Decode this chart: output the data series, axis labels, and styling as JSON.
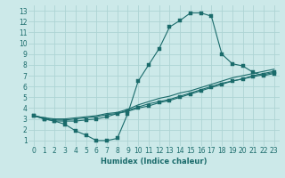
{
  "bg_color": "#cce9e9",
  "grid_color": "#aed4d4",
  "line_color": "#1a6b6b",
  "xlabel": "Humidex (Indice chaleur)",
  "xlim": [
    -0.5,
    23.5
  ],
  "ylim": [
    0.5,
    13.5
  ],
  "xticks": [
    0,
    1,
    2,
    3,
    4,
    5,
    6,
    7,
    8,
    9,
    10,
    11,
    12,
    13,
    14,
    15,
    16,
    17,
    18,
    19,
    20,
    21,
    22,
    23
  ],
  "yticks": [
    1,
    2,
    3,
    4,
    5,
    6,
    7,
    8,
    9,
    10,
    11,
    12,
    13
  ],
  "curve1_x": [
    0,
    1,
    2,
    3,
    4,
    5,
    6,
    7,
    8,
    9,
    10,
    11,
    12,
    13,
    14,
    15,
    16,
    17,
    18,
    19,
    20,
    21,
    22,
    23
  ],
  "curve1_y": [
    3.3,
    3.0,
    2.8,
    2.5,
    1.9,
    1.5,
    1.0,
    1.0,
    1.2,
    3.5,
    6.5,
    8.0,
    9.5,
    11.5,
    12.1,
    12.8,
    12.8,
    12.5,
    9.0,
    8.1,
    7.9,
    7.3,
    7.0,
    7.2
  ],
  "curve2_x": [
    0,
    1,
    2,
    3,
    4,
    5,
    6,
    7,
    8,
    9,
    10,
    11,
    12,
    13,
    14,
    15,
    16,
    17,
    18,
    19,
    20,
    21,
    22,
    23
  ],
  "curve2_y": [
    3.3,
    3.0,
    2.8,
    2.8,
    2.8,
    2.9,
    3.0,
    3.2,
    3.5,
    3.7,
    4.0,
    4.2,
    4.5,
    4.7,
    5.0,
    5.3,
    5.6,
    5.9,
    6.2,
    6.5,
    6.7,
    6.9,
    7.1,
    7.3
  ],
  "curve3_x": [
    0,
    1,
    2,
    3,
    4,
    5,
    6,
    7,
    8,
    9,
    10,
    11,
    12,
    13,
    14,
    15,
    16,
    17,
    18,
    19,
    20,
    21,
    22,
    23
  ],
  "curve3_y": [
    3.3,
    3.1,
    2.9,
    2.9,
    3.0,
    3.1,
    3.2,
    3.4,
    3.5,
    3.8,
    4.1,
    4.4,
    4.6,
    4.8,
    5.1,
    5.4,
    5.7,
    6.0,
    6.3,
    6.5,
    6.7,
    7.0,
    7.2,
    7.4
  ],
  "curve4_x": [
    0,
    1,
    2,
    3,
    4,
    5,
    6,
    7,
    8,
    9,
    10,
    11,
    12,
    13,
    14,
    15,
    16,
    17,
    18,
    19,
    20,
    21,
    22,
    23
  ],
  "curve4_y": [
    3.3,
    3.1,
    3.0,
    3.0,
    3.1,
    3.2,
    3.3,
    3.5,
    3.6,
    3.9,
    4.3,
    4.6,
    4.9,
    5.1,
    5.4,
    5.6,
    5.9,
    6.2,
    6.5,
    6.8,
    7.0,
    7.2,
    7.4,
    7.6
  ]
}
